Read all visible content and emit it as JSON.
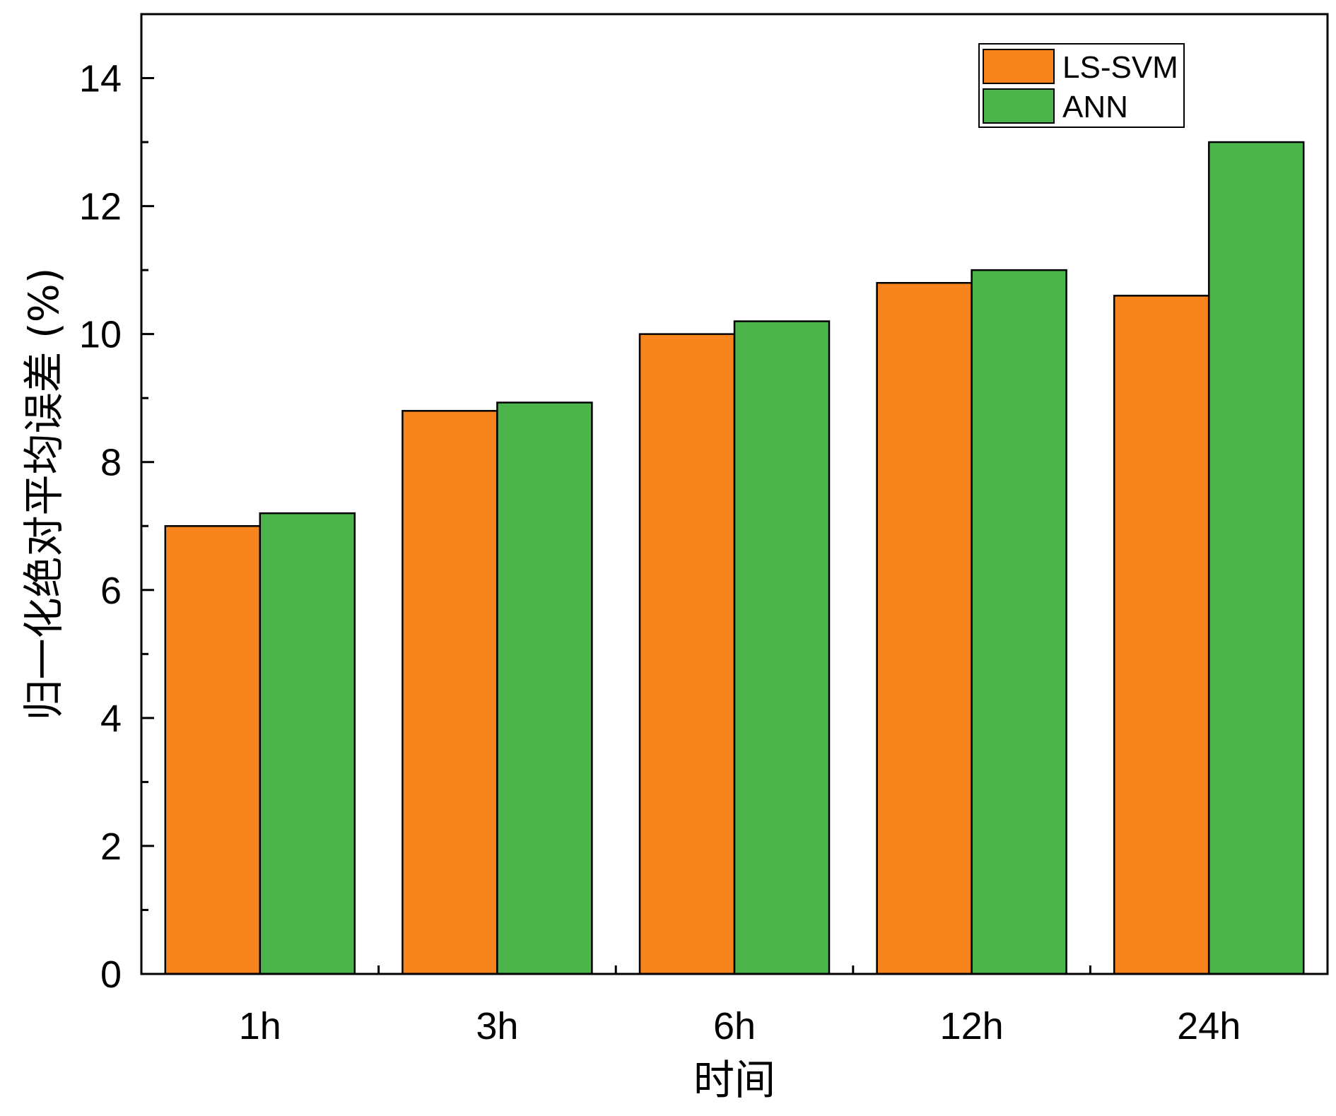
{
  "chart_data": {
    "type": "bar",
    "title": "",
    "xlabel": "时间",
    "ylabel": "归一化绝对平均误差 (%)",
    "categories": [
      "1h",
      "3h",
      "6h",
      "12h",
      "24h"
    ],
    "series": [
      {
        "name": "LS-SVM",
        "color": "#F7841C",
        "values": [
          7.0,
          8.8,
          10.0,
          10.8,
          10.6
        ]
      },
      {
        "name": "ANN",
        "color": "#4BB44A",
        "values": [
          7.2,
          8.93,
          10.2,
          11.0,
          13.0
        ]
      }
    ],
    "ylim": [
      0,
      15
    ],
    "yticks": [
      0,
      2,
      4,
      6,
      8,
      10,
      12,
      14
    ],
    "grid": false,
    "legend": "top-right"
  }
}
